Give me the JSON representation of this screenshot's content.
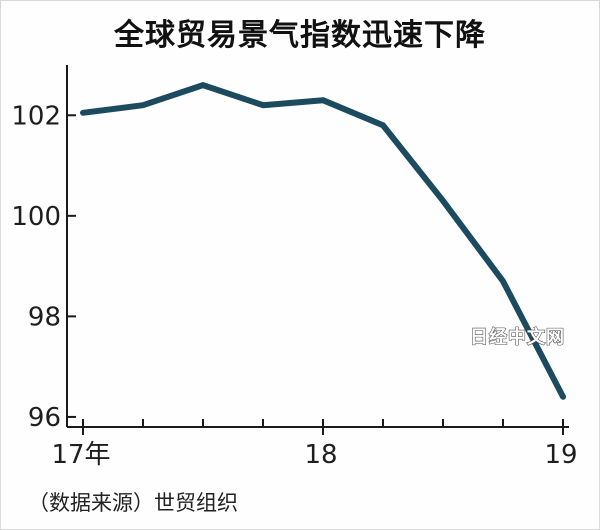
{
  "header": {
    "title": "全球贸易景气指数迅速下降"
  },
  "footer": {
    "source": "（数据来源）世贸组织"
  },
  "watermark": {
    "text": "日经中文网"
  },
  "colors": {
    "line": "#1c4a5e",
    "axis": "#1a1a1a"
  },
  "chart_data": {
    "type": "line",
    "title": "全球贸易景气指数迅速下降",
    "xlabel": "",
    "ylabel": "",
    "x_ticks": [
      "17年",
      "18",
      "19"
    ],
    "x_tick_positions": [
      0,
      4,
      8
    ],
    "y_ticks": [
      "96",
      "98",
      "100",
      "102"
    ],
    "ylim": [
      95.8,
      103.0
    ],
    "xlim": [
      0,
      8
    ],
    "grid": false,
    "series": [
      {
        "x": [
          0,
          1,
          2,
          3,
          4,
          5,
          6,
          7,
          8
        ],
        "values": [
          102.05,
          102.2,
          102.6,
          102.2,
          102.3,
          101.8,
          100.3,
          98.7,
          96.4
        ]
      }
    ]
  }
}
